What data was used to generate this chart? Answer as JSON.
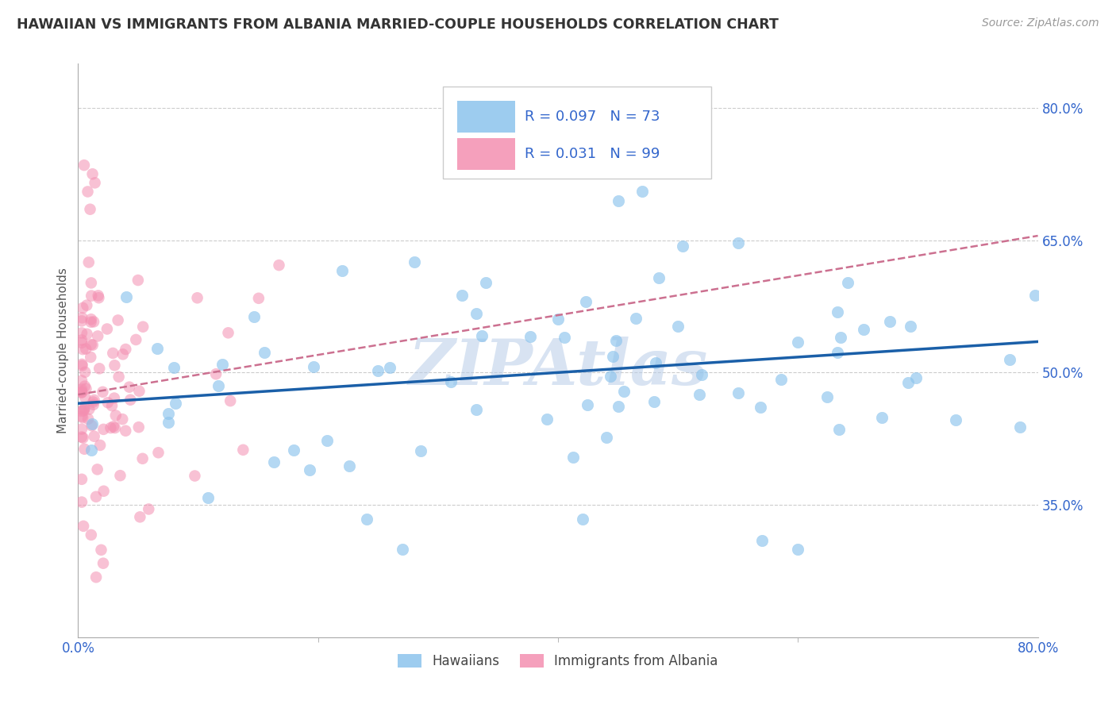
{
  "title": "HAWAIIAN VS IMMIGRANTS FROM ALBANIA MARRIED-COUPLE HOUSEHOLDS CORRELATION CHART",
  "source": "Source: ZipAtlas.com",
  "ylabel": "Married-couple Households",
  "x_min": 0.0,
  "x_max": 0.8,
  "y_min": 0.2,
  "y_max": 0.85,
  "yticks": [
    0.35,
    0.5,
    0.65,
    0.8
  ],
  "xtick_labels": [
    "0.0%",
    "80.0%"
  ],
  "xtick_positions": [
    0.0,
    0.8
  ],
  "ytick_labels": [
    "35.0%",
    "50.0%",
    "65.0%",
    "80.0%"
  ],
  "hawaiians_color": "#8CC4ED",
  "albania_color": "#F48FB1",
  "trendline_hawaii_color": "#1A5FA8",
  "trendline_albania_color": "#CC7090",
  "legend_R_hawaii": "R = 0.097",
  "legend_N_hawaii": "N = 73",
  "legend_R_albania": "R = 0.031",
  "legend_N_albania": "N = 99",
  "watermark": "ZIPAtlas",
  "background_color": "#FFFFFF",
  "grid_color": "#CCCCCC",
  "axis_color": "#3366CC",
  "title_color": "#333333",
  "source_color": "#999999",
  "ylabel_color": "#555555",
  "hawaii_trendline_start_y": 0.465,
  "hawaii_trendline_end_y": 0.535,
  "albania_trendline_start_y": 0.475,
  "albania_trendline_end_y": 0.655
}
